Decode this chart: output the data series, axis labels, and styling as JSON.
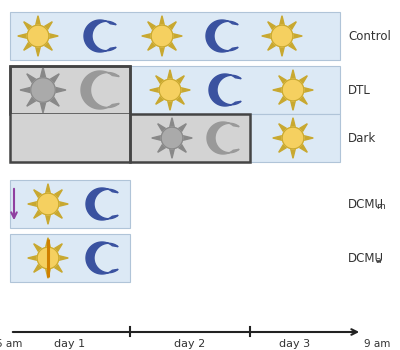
{
  "bg_color": "#dce9f5",
  "gray_color": "#d3d3d3",
  "border_color": "#444444",
  "sun_color": "#f5d060",
  "sun_stroke": "#c8a830",
  "moon_color": "#3a52a0",
  "moon_gray": "#909090",
  "purple_arrow": "#9040a0",
  "orange_line": "#d08000",
  "row_labels": [
    "Control",
    "DTL",
    "Dark",
    "DCMUm",
    "DCMUa"
  ],
  "figure_width": 4.0,
  "figure_height": 3.5,
  "dpi": 100
}
